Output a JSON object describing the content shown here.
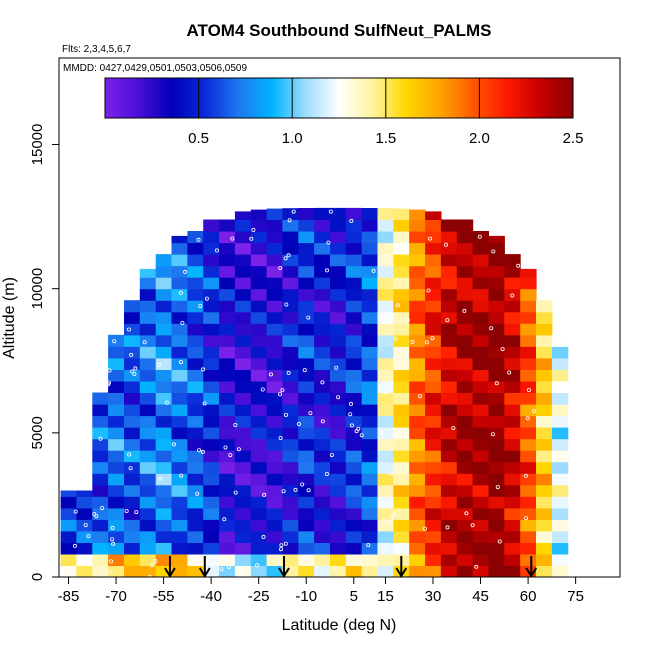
{
  "chart_data": {
    "type": "heatmap",
    "title": "ATOM4 Southbound SulfNeut_PALMS",
    "flights_note": "Flts: 2,3,4,5,6,7",
    "dates_note": "MMDD: 0427,0429,0501,0503,0506,0509",
    "xlabel": "Latitude (deg N)",
    "ylabel": "Altitude (m)",
    "xlim": [
      -88,
      89
    ],
    "ylim": [
      0,
      18000
    ],
    "x_ticks": [
      -85,
      -70,
      -55,
      -40,
      -25,
      -10,
      5,
      15,
      30,
      45,
      60,
      75
    ],
    "x_tick_labels": [
      "-85",
      "-70",
      "-55",
      "-40",
      "-25",
      "-10",
      "5",
      "15",
      "30",
      "45",
      "60",
      "75"
    ],
    "y_ticks": [
      0,
      5000,
      10000,
      15000
    ],
    "y_tick_labels": [
      "0",
      "5000",
      "10000",
      "15000"
    ],
    "colorbar": {
      "range": [
        0,
        2.5
      ],
      "ticks": [
        0.5,
        1.0,
        1.5,
        2.0,
        2.5
      ],
      "tick_labels": [
        "0.5",
        "1.0",
        "1.5",
        "2.0",
        "2.5"
      ],
      "colors": [
        "#7b22e8",
        "#4a0fd8",
        "#0000b8",
        "#0a2ad8",
        "#1e78f0",
        "#00b4ff",
        "#9fdcff",
        "#ffffff",
        "#fff3a0",
        "#ffd700",
        "#ffa500",
        "#ff5a00",
        "#ff1a00",
        "#c80000",
        "#8b0000"
      ]
    },
    "arrows_latitudes": [
      -53,
      -42,
      -17,
      20,
      61
    ],
    "band_latitudes": [
      -85,
      -80,
      -75,
      -70,
      -65,
      -60,
      -55,
      -50,
      -45,
      -40,
      -35,
      -30,
      -25,
      -20,
      -15,
      -10,
      -5,
      0,
      5,
      10,
      15,
      20,
      25,
      30,
      35,
      40,
      45,
      50,
      55,
      60,
      65,
      70
    ],
    "mean_value_by_latitude": [
      0.5,
      0.5,
      0.6,
      0.7,
      0.6,
      0.7,
      0.8,
      0.7,
      0.6,
      0.5,
      0.3,
      0.3,
      0.3,
      0.3,
      0.4,
      0.5,
      0.4,
      0.4,
      0.5,
      0.6,
      1.3,
      1.5,
      1.9,
      2.1,
      2.3,
      2.4,
      2.4,
      2.5,
      2.3,
      2.0,
      1.6,
      1.2
    ]
  }
}
